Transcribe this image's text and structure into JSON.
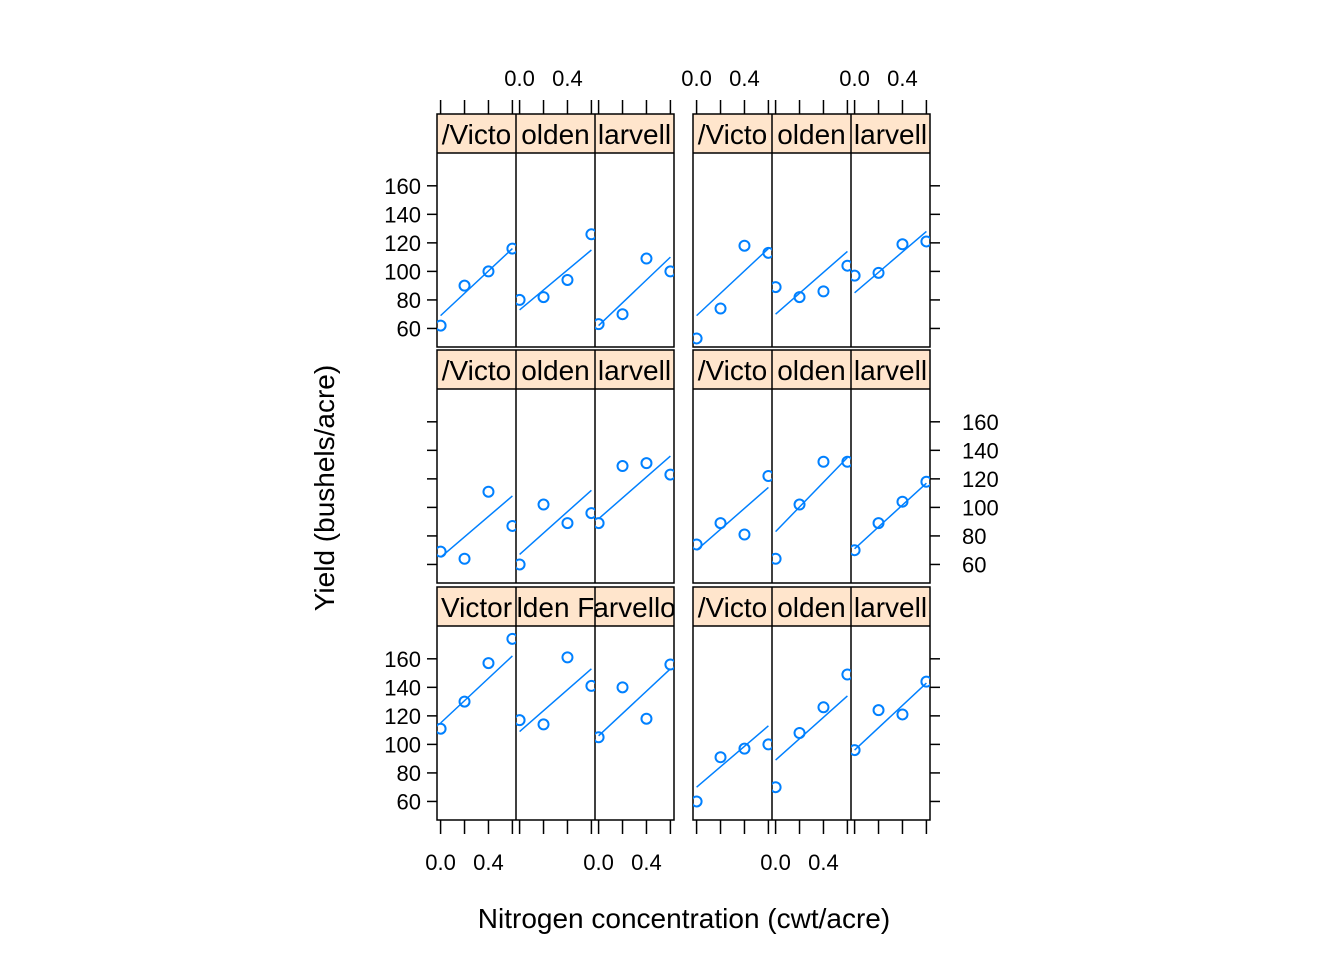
{
  "chart_data": {
    "type": "scatter",
    "title": "",
    "xlabel": "Nitrogen concentration (cwt/acre)",
    "ylabel": "Yield (bushels/acre)",
    "x_ticks": [
      0.0,
      0.2,
      0.4,
      0.6
    ],
    "x_tick_labels": [
      "0.0",
      "0.4"
    ],
    "x_tick_label_values": [
      0.0,
      0.4
    ],
    "y_ticks": [
      60,
      80,
      100,
      120,
      140,
      160
    ],
    "y_tick_labels": [
      "60",
      "80",
      "100",
      "120",
      "140",
      "160"
    ],
    "xlim": [
      -0.03,
      0.63
    ],
    "ylim": [
      47,
      183
    ],
    "grid": false,
    "layout": "2 blocks x 3 rows x 3 varieties",
    "strip_color": "#ffe5cc",
    "point_color": "#0080ff",
    "line_color": "#0080ff",
    "x": [
      0.0,
      0.2,
      0.4,
      0.6
    ],
    "blocks": [
      {
        "rows": [
          {
            "panels": [
              {
                "strip": "/Victo",
                "values": [
                  62,
                  90,
                  100,
                  116
                ],
                "fit": [
                  69,
                  116
                ]
              },
              {
                "strip": "olden",
                "values": [
                  80,
                  82,
                  94,
                  126
                ],
                "fit": [
                  73,
                  115
                ]
              },
              {
                "strip": "larvell",
                "values": [
                  63,
                  70,
                  109,
                  100
                ],
                "fit": [
                  62,
                  110
                ]
              }
            ]
          },
          {
            "panels": [
              {
                "strip": "/Victo",
                "values": [
                  69,
                  64,
                  111,
                  87
                ],
                "fit": [
                  65,
                  108
                ]
              },
              {
                "strip": "olden",
                "values": [
                  60,
                  102,
                  89,
                  96
                ],
                "fit": [
                  67,
                  112
                ]
              },
              {
                "strip": "larvell",
                "values": [
                  89,
                  129,
                  131,
                  123
                ],
                "fit": [
                  92,
                  136
                ]
              }
            ]
          },
          {
            "panels": [
              {
                "strip": "Victor",
                "values": [
                  111,
                  130,
                  157,
                  174
                ],
                "fit": [
                  115,
                  162
                ]
              },
              {
                "strip": "lden F",
                "values": [
                  117,
                  114,
                  161,
                  141
                ],
                "fit": [
                  109,
                  153
                ]
              },
              {
                "strip": "arvello",
                "values": [
                  105,
                  140,
                  118,
                  156
                ],
                "fit": [
                  106,
                  153
                ]
              }
            ]
          }
        ]
      },
      {
        "rows": [
          {
            "panels": [
              {
                "strip": "/Victo",
                "values": [
                  53,
                  74,
                  118,
                  113
                ],
                "fit": [
                  69,
                  116
                ]
              },
              {
                "strip": "olden",
                "values": [
                  89,
                  82,
                  86,
                  104
                ],
                "fit": [
                  70,
                  114
                ]
              },
              {
                "strip": "larvell",
                "values": [
                  97,
                  99,
                  119,
                  121
                ],
                "fit": [
                  85,
                  128
                ]
              }
            ]
          },
          {
            "panels": [
              {
                "strip": "/Victo",
                "values": [
                  74,
                  89,
                  81,
                  122
                ],
                "fit": [
                  70,
                  114
                ]
              },
              {
                "strip": "olden",
                "values": [
                  64,
                  102,
                  132,
                  132
                ],
                "fit": [
                  83,
                  135
                ]
              },
              {
                "strip": "larvell",
                "values": [
                  70,
                  89,
                  104,
                  118
                ],
                "fit": [
                  71,
                  117
                ]
              }
            ]
          },
          {
            "panels": [
              {
                "strip": "/Victo",
                "values": [
                  60,
                  91,
                  97,
                  100
                ],
                "fit": [
                  70,
                  113
                ]
              },
              {
                "strip": "olden",
                "values": [
                  70,
                  108,
                  126,
                  149
                ],
                "fit": [
                  89,
                  134
                ]
              },
              {
                "strip": "larvell",
                "values": [
                  96,
                  124,
                  121,
                  144
                ],
                "fit": [
                  96,
                  143
                ]
              }
            ]
          }
        ]
      }
    ]
  }
}
